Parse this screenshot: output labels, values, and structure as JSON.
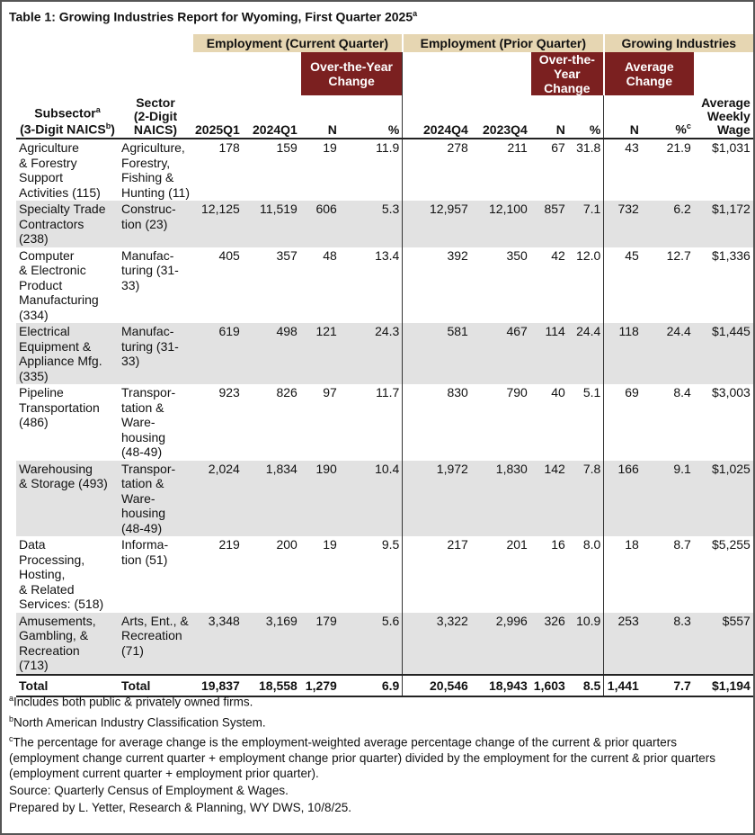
{
  "title": "Table 1: Growing Industries Report for Wyoming, First Quarter 2025",
  "title_note": "a",
  "groups": [
    "Employment (Current Quarter)",
    "Employment (Prior Quarter)",
    "Growing Industries"
  ],
  "subgroups": [
    "Over-the-Year\nChange",
    "Over-the-Year\nChange",
    "Average\nChange"
  ],
  "columns": [
    [
      {
        "text": "Subsector",
        "note": "a"
      },
      {
        "text": "(3-Digit NAICS",
        "note": "b",
        "after": ")"
      }
    ],
    "Sector\n(2-Digit\nNAICS)",
    "2025Q1",
    "2024Q1",
    "N",
    "%",
    "2024Q4",
    "2023Q4",
    "N",
    "%",
    "N",
    {
      "text": "%",
      "note": "c"
    },
    "Average\nWeekly\nWage"
  ],
  "rows": [
    {
      "subsector": "Agriculture\n& Forestry\nSupport\nActivities (115)",
      "sector": "Agriculture,\nForestry,\nFishing &\nHunting (11)",
      "values": [
        "178",
        "159",
        "19",
        "11.9",
        "278",
        "211",
        "67",
        "31.8",
        "43",
        "21.9",
        "$1,031"
      ]
    },
    {
      "subsector": "Specialty Trade\nContractors\n(238)",
      "sector": "Construc-\ntion (23)",
      "values": [
        "12,125",
        "11,519",
        "606",
        "5.3",
        "12,957",
        "12,100",
        "857",
        "7.1",
        "732",
        "6.2",
        "$1,172"
      ]
    },
    {
      "subsector": "Computer\n& Electronic\nProduct\nManufacturing\n(334)",
      "sector": "Manufac-\nturing (31-\n33)",
      "values": [
        "405",
        "357",
        "48",
        "13.4",
        "392",
        "350",
        "42",
        "12.0",
        "45",
        "12.7",
        "$1,336"
      ]
    },
    {
      "subsector": "Electrical\nEquipment &\nAppliance Mfg.\n(335)",
      "sector": "Manufac-\nturing (31-\n33)",
      "values": [
        "619",
        "498",
        "121",
        "24.3",
        "581",
        "467",
        "114",
        "24.4",
        "118",
        "24.4",
        "$1,445"
      ]
    },
    {
      "subsector": "Pipeline\nTransportation\n(486)",
      "sector": "Transpor-\ntation &\nWare-\nhousing\n(48-49)",
      "values": [
        "923",
        "826",
        "97",
        "11.7",
        "830",
        "790",
        "40",
        "5.1",
        "69",
        "8.4",
        "$3,003"
      ]
    },
    {
      "subsector": "Warehousing\n& Storage (493)",
      "sector": "Transpor-\ntation &\nWare-\nhousing\n(48-49)",
      "values": [
        "2,024",
        "1,834",
        "190",
        "10.4",
        "1,972",
        "1,830",
        "142",
        "7.8",
        "166",
        "9.1",
        "$1,025"
      ]
    },
    {
      "subsector": "Data\nProcessing,\nHosting,\n& Related\nServices: (518)",
      "sector": "Informa-\ntion (51)",
      "values": [
        "219",
        "200",
        "19",
        "9.5",
        "217",
        "201",
        "16",
        "8.0",
        "18",
        "8.7",
        "$5,255"
      ]
    },
    {
      "subsector": "Amusements,\nGambling, &\nRecreation\n(713)",
      "sector": "Arts, Ent., &\nRecreation\n(71)",
      "values": [
        "3,348",
        "3,169",
        "179",
        "5.6",
        "3,322",
        "2,996",
        "326",
        "10.9",
        "253",
        "8.3",
        "$557"
      ]
    }
  ],
  "total": {
    "subsector": "Total",
    "sector": "Total",
    "values": [
      "19,837",
      "18,558",
      "1,279",
      "6.9",
      "20,546",
      "18,943",
      "1,603",
      "8.5",
      "1,441",
      "7.7",
      "$1,194"
    ]
  },
  "footnotes": [
    {
      "note": "a",
      "text": "Includes both public & privately owned firms."
    },
    {
      "note": "b",
      "text": "North American Industry Classification System."
    },
    {
      "note": "c",
      "text": "The percentage for average change is the employment-weighted average percentage change of the current & prior quarters (employment change current quarter + employment change prior quarter) divided by the employment for the current & prior quarters (employment current quarter + employment prior quarter)."
    }
  ],
  "source": "Source: Quarterly Census of Employment & Wages.",
  "prepared": "Prepared by L. Yetter, Research & Planning, WY DWS, 10/8/25."
}
